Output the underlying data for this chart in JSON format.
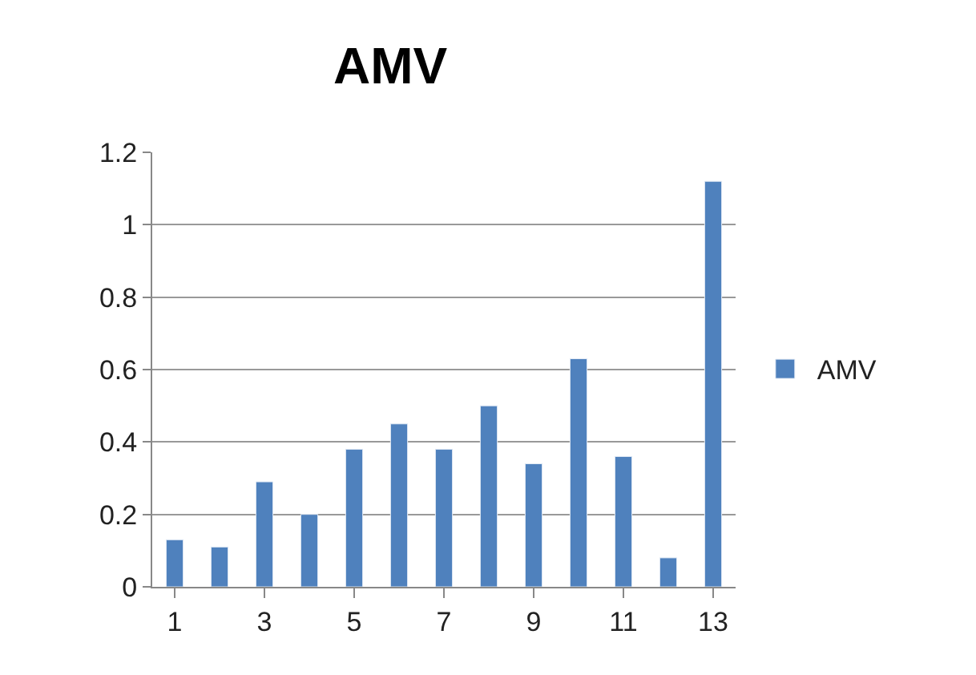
{
  "chart_data": {
    "type": "bar",
    "title": "AMV",
    "x": [
      1,
      2,
      3,
      4,
      5,
      6,
      7,
      8,
      9,
      10,
      11,
      12,
      13
    ],
    "xlim": [
      0.5,
      13.5
    ],
    "xticks": [
      1,
      3,
      5,
      7,
      9,
      11,
      13
    ],
    "series": [
      {
        "name": "AMV",
        "color": "#4f81bd",
        "values": [
          0.13,
          0.11,
          0.29,
          0.2,
          0.38,
          0.45,
          0.38,
          0.5,
          0.34,
          0.63,
          0.36,
          0.08,
          1.12
        ]
      }
    ],
    "ylim": [
      0,
      1.2
    ],
    "yticks": [
      0,
      0.2,
      0.4,
      0.6,
      0.8,
      1,
      1.2
    ],
    "grid": "y",
    "legend": "right"
  }
}
